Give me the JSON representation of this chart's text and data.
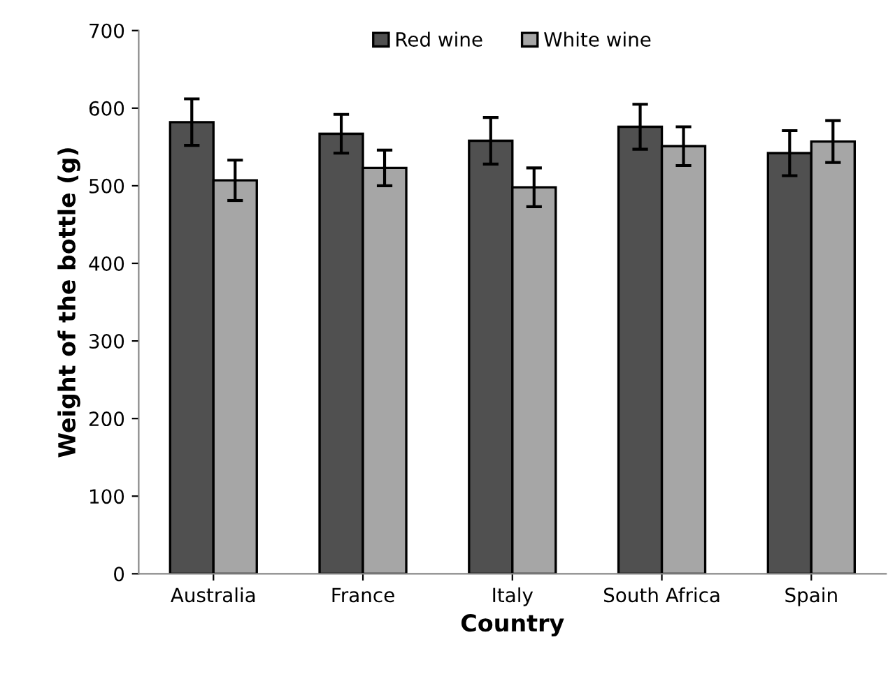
{
  "chart_data": {
    "type": "bar",
    "xlabel": "Country",
    "ylabel": "Weight of the bottle (g)",
    "categories": [
      "Australia",
      "France",
      "Italy",
      "South Africa",
      "Spain"
    ],
    "series": [
      {
        "name": "Red wine",
        "color": "#505050",
        "values": [
          582,
          567,
          558,
          576,
          542
        ],
        "errors": [
          30,
          25,
          30,
          29,
          29
        ]
      },
      {
        "name": "White wine",
        "color": "#a6a6a6",
        "values": [
          507,
          523,
          498,
          551,
          557
        ],
        "errors": [
          26,
          23,
          25,
          25,
          27
        ]
      }
    ],
    "ylim": [
      0,
      700
    ],
    "yticks": [
      0,
      100,
      200,
      300,
      400,
      500,
      600,
      700
    ],
    "grid": false,
    "legend": "top"
  }
}
